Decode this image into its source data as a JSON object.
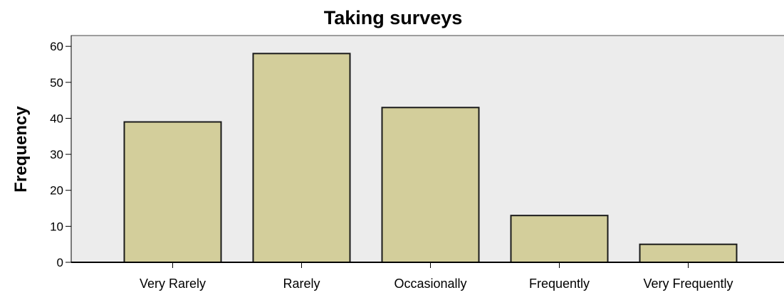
{
  "chart_data": {
    "type": "bar",
    "title": "Taking surveys",
    "ylabel": "Frequency",
    "xlabel": "",
    "categories": [
      "Very Rarely",
      "Rarely",
      "Occasionally",
      "Frequently",
      "Very Frequently"
    ],
    "values": [
      39,
      58,
      43,
      13,
      5
    ],
    "ylim": [
      0,
      63
    ],
    "yticks": [
      0,
      10,
      20,
      30,
      40,
      50,
      60
    ],
    "grid": false,
    "legend": "none",
    "colors": {
      "bar_fill": "#d3ce9b",
      "bar_stroke": "#1a1a1a",
      "plot_background": "#ececec",
      "frame": "#444444",
      "axis": "#000000"
    }
  }
}
